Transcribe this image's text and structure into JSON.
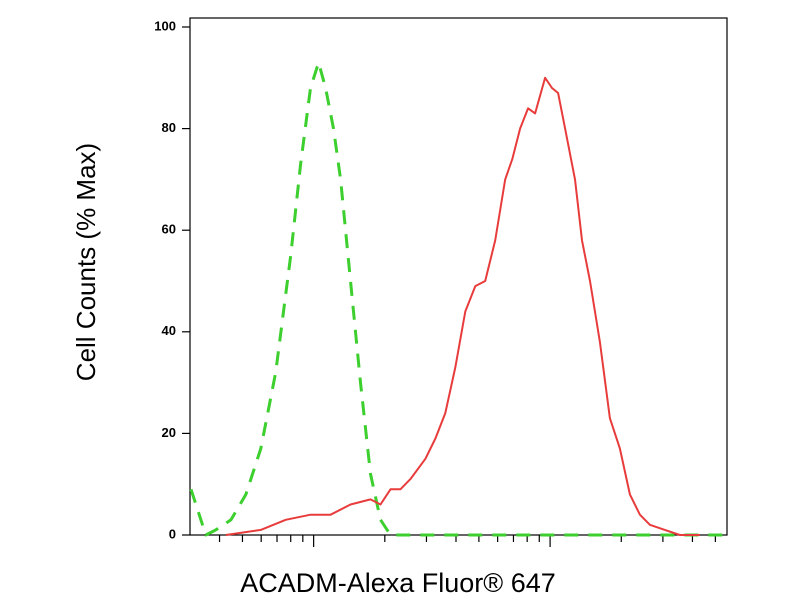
{
  "chart_data": {
    "type": "line",
    "x_label": "ACADM-Alexa Fluor® 647",
    "y_label": "Cell Counts (% Max)",
    "xscale": "log",
    "xlim": [
      300,
      56000
    ],
    "ylim": [
      0,
      100
    ],
    "yticks": [
      0,
      20,
      40,
      60,
      80,
      100
    ],
    "xticks": [
      400,
      500,
      600,
      700,
      800,
      900,
      1000,
      2000,
      3000,
      4000,
      5000,
      6000,
      7000,
      8000,
      9000,
      10000,
      20000,
      30000,
      40000,
      50000
    ],
    "series": [
      {
        "color": "#3ccf2e",
        "dash": true,
        "x": [
          303,
          350,
          386,
          447,
          517,
          598,
          691,
          800,
          881,
          970,
          1050,
          1124,
          1214,
          1300,
          1432,
          1578,
          1740,
          1918,
          2113,
          55800
        ],
        "values": [
          9,
          0,
          1,
          3,
          8,
          17,
          32,
          55,
          73,
          88,
          93,
          88,
          80,
          70,
          50,
          30,
          12,
          3,
          0,
          0
        ]
      },
      {
        "color": "#e83c3c",
        "dash": false,
        "x": [
          425,
          598,
          762,
          970,
          1180,
          1432,
          1740,
          1918,
          2113,
          2328,
          2566,
          2969,
          3273,
          3606,
          3973,
          4378,
          4826,
          5317,
          5861,
          6457,
          6918,
          7468,
          8076,
          8646,
          9528,
          10190,
          10810,
          11570,
          12740,
          13650,
          14750,
          16250,
          17910,
          19740,
          21760,
          23980,
          26420,
          30580,
          35400,
          42950
        ],
        "values": [
          0,
          1,
          3,
          4,
          4,
          6,
          7,
          6,
          9,
          9,
          11,
          15,
          19,
          24,
          33,
          44,
          49,
          50,
          58,
          70,
          74,
          80,
          84,
          83,
          90,
          88,
          87,
          80,
          70,
          58,
          50,
          38,
          23,
          17,
          8,
          4,
          2,
          1,
          0,
          0
        ]
      }
    ]
  }
}
